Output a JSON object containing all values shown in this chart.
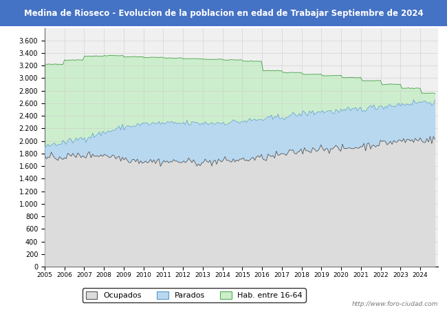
{
  "title": "Medina de Rioseco - Evolucion de la poblacion en edad de Trabajar Septiembre de 2024",
  "title_bg_color": "#4472c4",
  "title_text_color": "#ffffff",
  "ylim": [
    0,
    3800
  ],
  "yticks": [
    0,
    200,
    400,
    600,
    800,
    1000,
    1200,
    1400,
    1600,
    1800,
    2000,
    2200,
    2400,
    2600,
    2800,
    3000,
    3200,
    3400,
    3600
  ],
  "watermark": "http://www.foro-ciudad.com",
  "legend_labels": [
    "Ocupados",
    "Parados",
    "Hab. entre 16-64"
  ],
  "colors": {
    "ocupados_fill": "#dcdcdc",
    "ocupados_line": "#555555",
    "parados_fill": "#b8d8f0",
    "parados_line": "#5599cc",
    "hab_fill": "#cceecc",
    "hab_line": "#55aa55"
  },
  "year_labels": [
    2005,
    2006,
    2007,
    2008,
    2009,
    2010,
    2011,
    2012,
    2013,
    2014,
    2015,
    2016,
    2017,
    2018,
    2019,
    2020,
    2021,
    2022,
    2023,
    2024
  ],
  "n_months": 237,
  "start_year": 2005,
  "hab_annual": [
    3220,
    3290,
    3350,
    3360,
    3340,
    3330,
    3320,
    3310,
    3300,
    3290,
    3270,
    3120,
    3090,
    3060,
    3040,
    3010,
    2960,
    2900,
    2840,
    2760
  ],
  "parados_top_annual": [
    1920,
    1970,
    2050,
    2130,
    2220,
    2270,
    2280,
    2280,
    2280,
    2290,
    2310,
    2340,
    2380,
    2430,
    2470,
    2470,
    2510,
    2550,
    2580,
    2620
  ],
  "ocupados_annual": [
    1720,
    1750,
    1770,
    1780,
    1720,
    1680,
    1670,
    1670,
    1660,
    1680,
    1700,
    1730,
    1780,
    1840,
    1890,
    1870,
    1910,
    1960,
    2000,
    2020
  ]
}
